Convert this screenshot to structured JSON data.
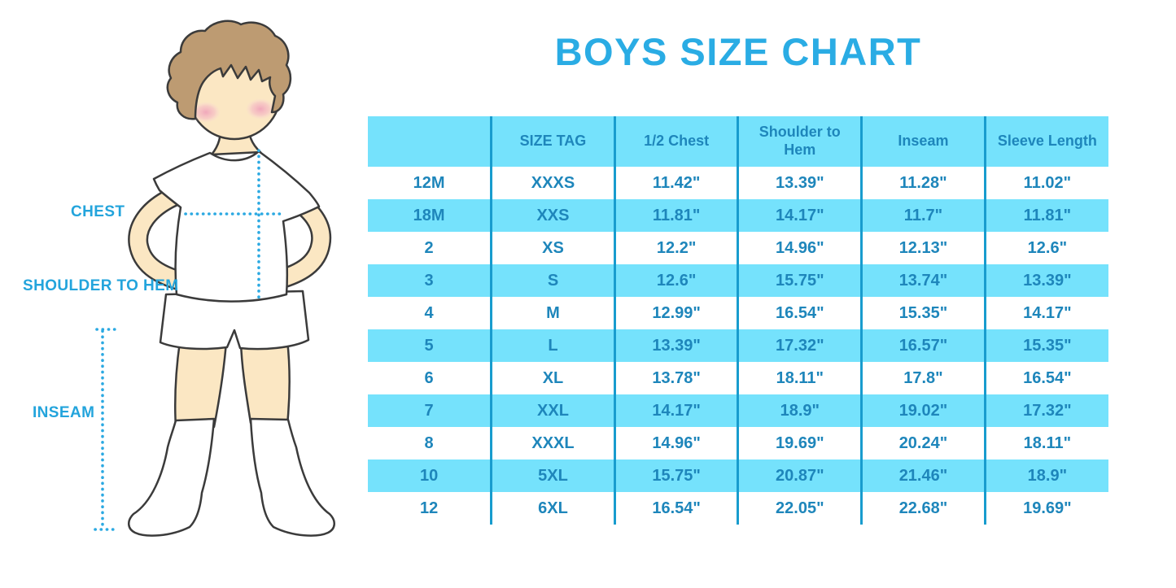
{
  "title": "BOYS SIZE CHART",
  "figure": {
    "labels": {
      "chest": "CHEST",
      "shoulder_to_hem": "SHOULDER TO HEM",
      "inseam": "INSEAM"
    }
  },
  "colors": {
    "title_blue": "#2AACE4",
    "label_blue": "#23A4DC",
    "dotted_line_blue": "#2BA9E2",
    "table_fill_light_blue": "#75E2FC",
    "table_divider_blue": "#189CCE",
    "table_text_blue": "#1E86BB",
    "skin": "#FBE7C3",
    "hair": "#BD9B72"
  },
  "chart_data": {
    "type": "table",
    "title": "BOYS SIZE CHART",
    "columns": [
      "",
      "SIZE TAG",
      "1/2 Chest",
      "Shoulder to Hem",
      "Inseam",
      "Sleeve Length"
    ],
    "rows": [
      [
        "12M",
        "XXXS",
        "11.42\"",
        "13.39\"",
        "11.28\"",
        "11.02\""
      ],
      [
        "18M",
        "XXS",
        "11.81\"",
        "14.17\"",
        "11.7\"",
        "11.81\""
      ],
      [
        "2",
        "XS",
        "12.2\"",
        "14.96\"",
        "12.13\"",
        "12.6\""
      ],
      [
        "3",
        "S",
        "12.6\"",
        "15.75\"",
        "13.74\"",
        "13.39\""
      ],
      [
        "4",
        "M",
        "12.99\"",
        "16.54\"",
        "15.35\"",
        "14.17\""
      ],
      [
        "5",
        "L",
        "13.39\"",
        "17.32\"",
        "16.57\"",
        "15.35\""
      ],
      [
        "6",
        "XL",
        "13.78\"",
        "18.11\"",
        "17.8\"",
        "16.54\""
      ],
      [
        "7",
        "XXL",
        "14.17\"",
        "18.9\"",
        "19.02\"",
        "17.32\""
      ],
      [
        "8",
        "XXXL",
        "14.96\"",
        "19.69\"",
        "20.24\"",
        "18.11\""
      ],
      [
        "10",
        "5XL",
        "15.75\"",
        "20.87\"",
        "21.46\"",
        "18.9\""
      ],
      [
        "12",
        "6XL",
        "16.54\"",
        "22.05\"",
        "22.68\"",
        "19.69\""
      ]
    ],
    "row_stripe_pattern": "white/light-blue alternating, starting white",
    "legend_position": "none",
    "grid": "vertical dividers only"
  }
}
